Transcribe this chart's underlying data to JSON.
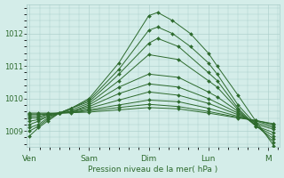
{
  "xlabel": "Pression niveau de la mer( hPa )",
  "bg_color": "#d4ede9",
  "grid_color": "#a8ccc8",
  "line_color": "#2d6a2d",
  "ylim": [
    1008.5,
    1012.9
  ],
  "yticks": [
    1009,
    1010,
    1011,
    1012
  ],
  "x_labels": [
    "Ven",
    "Sam",
    "Dim",
    "Lun",
    "M"
  ],
  "x_positions": [
    0,
    1,
    2,
    3,
    4
  ],
  "xlim": [
    -0.05,
    4.2
  ],
  "lines": [
    {
      "x": [
        0.0,
        0.15,
        0.3,
        0.5,
        0.7,
        1.0,
        1.5,
        2.0,
        2.15,
        2.4,
        2.7,
        3.0,
        3.15,
        3.5,
        3.8,
        4.1
      ],
      "y": [
        1008.85,
        1009.1,
        1009.3,
        1009.55,
        1009.7,
        1010.0,
        1011.1,
        1012.55,
        1012.65,
        1012.4,
        1012.0,
        1011.4,
        1011.0,
        1010.1,
        1009.3,
        1008.55
      ]
    },
    {
      "x": [
        0.0,
        0.15,
        0.3,
        0.5,
        0.7,
        1.0,
        1.5,
        2.0,
        2.15,
        2.4,
        2.7,
        3.0,
        3.15,
        3.5,
        3.8,
        4.1
      ],
      "y": [
        1009.0,
        1009.15,
        1009.35,
        1009.55,
        1009.7,
        1009.95,
        1010.9,
        1012.1,
        1012.2,
        1012.0,
        1011.6,
        1011.1,
        1010.75,
        1009.8,
        1009.2,
        1008.65
      ]
    },
    {
      "x": [
        0.0,
        0.15,
        0.3,
        0.5,
        0.7,
        1.0,
        1.5,
        2.0,
        2.15,
        2.5,
        3.0,
        3.15,
        3.5,
        3.8,
        4.1
      ],
      "y": [
        1009.1,
        1009.2,
        1009.4,
        1009.55,
        1009.7,
        1009.9,
        1010.75,
        1011.7,
        1011.85,
        1011.6,
        1010.8,
        1010.55,
        1009.7,
        1009.15,
        1008.75
      ]
    },
    {
      "x": [
        0.0,
        0.15,
        0.3,
        0.5,
        0.7,
        1.0,
        1.5,
        2.0,
        2.5,
        3.0,
        3.15,
        3.5,
        3.8,
        4.1
      ],
      "y": [
        1009.2,
        1009.3,
        1009.45,
        1009.55,
        1009.65,
        1009.85,
        1010.55,
        1011.35,
        1011.2,
        1010.55,
        1010.35,
        1009.65,
        1009.15,
        1008.85
      ]
    },
    {
      "x": [
        0.0,
        0.15,
        0.3,
        0.5,
        0.7,
        1.0,
        1.5,
        2.0,
        2.5,
        3.0,
        3.15,
        3.5,
        3.8,
        4.1
      ],
      "y": [
        1009.3,
        1009.35,
        1009.45,
        1009.55,
        1009.6,
        1009.8,
        1010.35,
        1010.75,
        1010.65,
        1010.2,
        1010.05,
        1009.6,
        1009.15,
        1008.95
      ]
    },
    {
      "x": [
        0.0,
        0.15,
        0.3,
        0.5,
        0.7,
        1.0,
        1.5,
        2.0,
        2.5,
        3.0,
        3.5,
        3.8,
        4.1
      ],
      "y": [
        1009.4,
        1009.4,
        1009.5,
        1009.55,
        1009.6,
        1009.75,
        1010.15,
        1010.45,
        1010.35,
        1010.0,
        1009.55,
        1009.2,
        1009.05
      ]
    },
    {
      "x": [
        0.0,
        0.15,
        0.3,
        0.5,
        0.7,
        1.0,
        1.5,
        2.0,
        2.5,
        3.0,
        3.5,
        3.8,
        4.1
      ],
      "y": [
        1009.45,
        1009.45,
        1009.5,
        1009.55,
        1009.58,
        1009.7,
        1009.95,
        1010.2,
        1010.1,
        1009.85,
        1009.5,
        1009.25,
        1009.1
      ]
    },
    {
      "x": [
        0.0,
        0.15,
        0.3,
        0.5,
        0.7,
        1.0,
        1.5,
        2.0,
        2.5,
        3.0,
        3.5,
        3.8,
        4.1
      ],
      "y": [
        1009.5,
        1009.5,
        1009.52,
        1009.55,
        1009.57,
        1009.65,
        1009.8,
        1009.95,
        1009.9,
        1009.7,
        1009.45,
        1009.3,
        1009.15
      ]
    },
    {
      "x": [
        0.0,
        0.15,
        0.3,
        0.5,
        0.7,
        1.0,
        1.5,
        2.0,
        2.5,
        3.0,
        3.5,
        3.8,
        4.1
      ],
      "y": [
        1009.52,
        1009.52,
        1009.53,
        1009.55,
        1009.56,
        1009.62,
        1009.72,
        1009.82,
        1009.75,
        1009.6,
        1009.42,
        1009.32,
        1009.2
      ]
    },
    {
      "x": [
        0.0,
        0.15,
        0.3,
        0.5,
        1.0,
        1.5,
        2.0,
        2.5,
        3.0,
        3.5,
        3.8,
        4.1
      ],
      "y": [
        1009.55,
        1009.55,
        1009.55,
        1009.55,
        1009.58,
        1009.65,
        1009.72,
        1009.68,
        1009.55,
        1009.4,
        1009.32,
        1009.22
      ]
    }
  ]
}
